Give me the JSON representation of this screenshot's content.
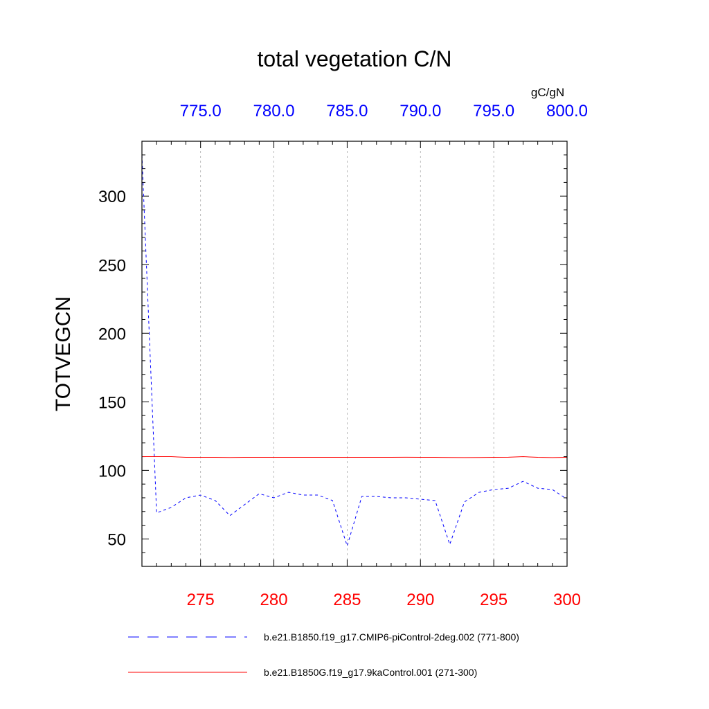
{
  "chart_data": {
    "type": "line",
    "title": "total vegetation C/N",
    "ylabel": "TOTVEGCN",
    "units": "gC/gN",
    "ylim": [
      30,
      340
    ],
    "yticks": [
      50,
      100,
      150,
      200,
      250,
      300
    ],
    "ytick_labels": [
      "50",
      "100",
      "150",
      "200",
      "250",
      "300"
    ],
    "x_bottom": {
      "range": [
        271,
        300
      ],
      "ticks": [
        275,
        280,
        285,
        290,
        295,
        300
      ],
      "tick_labels": [
        "275",
        "280",
        "285",
        "290",
        "295",
        "300"
      ],
      "color": "#ff0000"
    },
    "x_top": {
      "range": [
        771,
        800
      ],
      "ticks": [
        775,
        780,
        785,
        790,
        795,
        800
      ],
      "tick_labels": [
        "775.0",
        "780.0",
        "785.0",
        "790.0",
        "795.0",
        "800.0"
      ],
      "color": "#0000ff"
    },
    "grid": "vertical dashed at major x ticks",
    "legend_position": "bottom",
    "series": [
      {
        "name": "b.e21.B1850.f19_g17.CMIP6-piControl-2deg.002 (771-800)",
        "axis": "top",
        "color": "#0000ff",
        "style": "dashed",
        "x": [
          771,
          772,
          773,
          774,
          775,
          776,
          777,
          778,
          779,
          780,
          781,
          782,
          783,
          784,
          785,
          786,
          787,
          788,
          789,
          790,
          791,
          792,
          793,
          794,
          795,
          796,
          797,
          798,
          799,
          800
        ],
        "y": [
          330,
          69,
          73,
          80,
          82,
          78,
          67,
          75,
          83,
          80,
          84,
          82,
          82,
          78,
          45,
          81,
          81,
          80,
          80,
          79,
          78,
          46,
          77,
          84,
          86,
          87,
          92,
          87,
          86,
          79
        ]
      },
      {
        "name": "b.e21.B1850G.f19_g17.9kaControl.001 (271-300)",
        "axis": "bottom",
        "color": "#ff0000",
        "style": "solid",
        "x": [
          271,
          272,
          273,
          274,
          275,
          276,
          277,
          278,
          279,
          280,
          281,
          282,
          283,
          284,
          285,
          286,
          287,
          288,
          289,
          290,
          291,
          292,
          293,
          294,
          295,
          296,
          297,
          298,
          299,
          300
        ],
        "y": [
          110,
          110,
          110,
          109.5,
          109.5,
          109.5,
          109.4,
          109.5,
          109.5,
          109.5,
          109.5,
          109.5,
          109.5,
          109.5,
          109.5,
          109.5,
          109.5,
          109.5,
          109.6,
          109.5,
          109.5,
          109.4,
          109.3,
          109.4,
          109.5,
          109.6,
          110,
          109.5,
          109.3,
          109.5
        ]
      }
    ]
  }
}
